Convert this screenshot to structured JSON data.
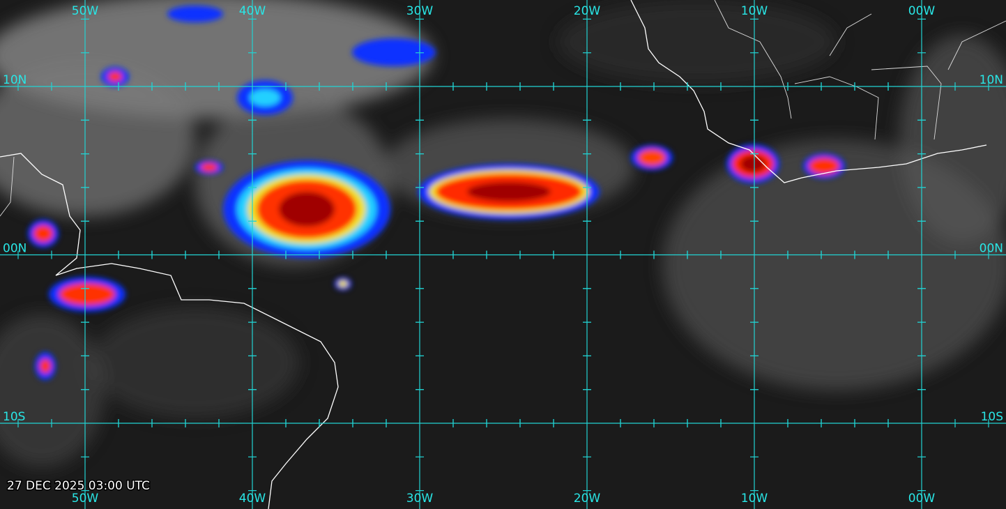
{
  "map": {
    "longitude_labels": [
      "50W",
      "40W",
      "30W",
      "20W",
      "10W",
      "00W"
    ],
    "latitude_labels": [
      "10N",
      "00N",
      "10S"
    ],
    "timestamp": "27 DEC 2025 03:00 UTC"
  }
}
